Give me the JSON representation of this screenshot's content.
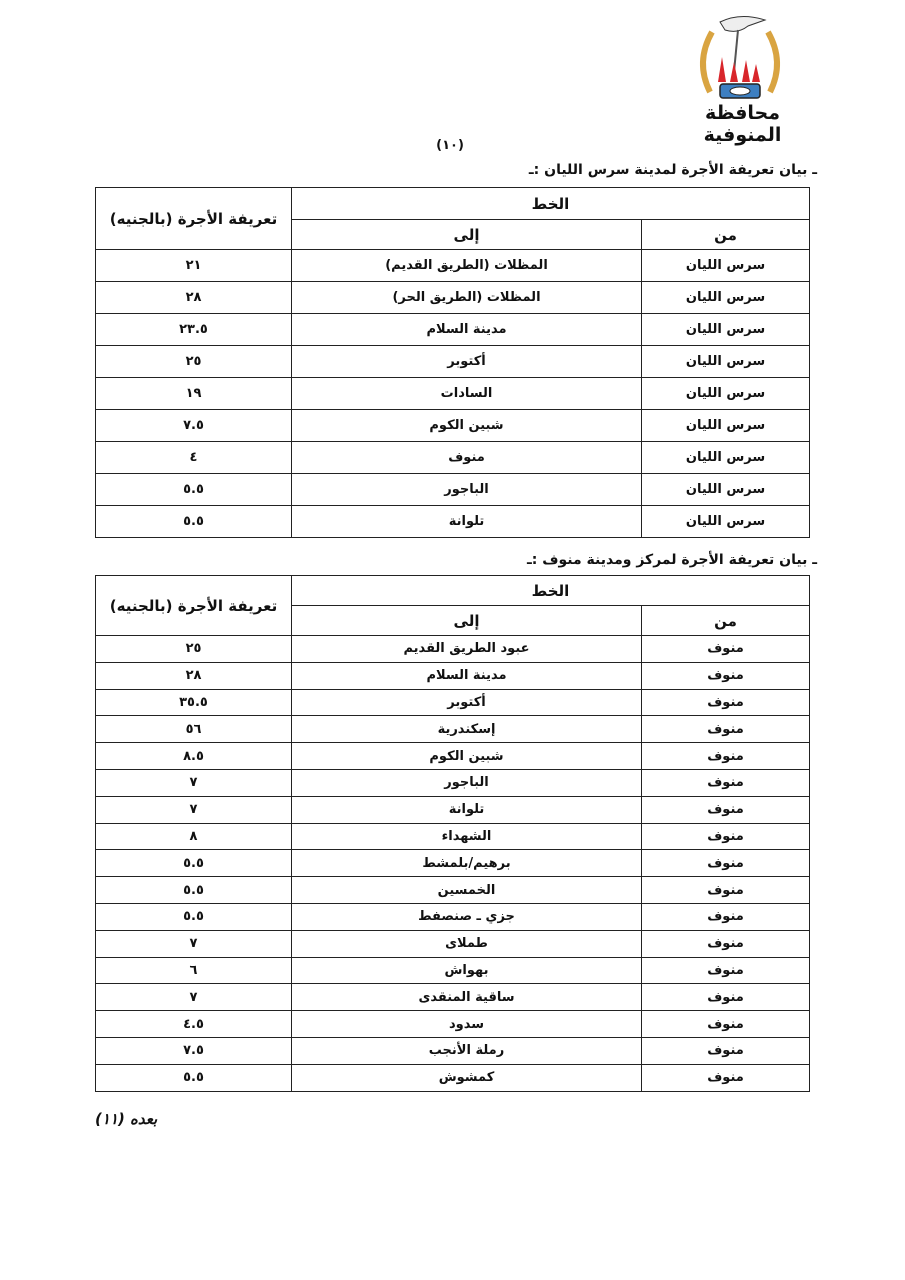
{
  "header": {
    "governorate": "محافظة المنوفية",
    "page_number": "(١٠)"
  },
  "colors": {
    "logo_flame": "#d8262b",
    "logo_wheat": "#d9a441",
    "logo_gear": "#3d7fc1"
  },
  "tables": [
    {
      "title": "ـ بيان تعريفة الأجرة لمدينة سرس الليان :ـ",
      "headers": {
        "line": "الخط",
        "from": "من",
        "to": "إلى",
        "fare": "تعريفة الأجرة (بالجنيه)"
      },
      "rows": [
        {
          "from": "سرس الليان",
          "to": "المظلات (الطريق القديم)",
          "fare": "٢١"
        },
        {
          "from": "سرس الليان",
          "to": "المظلات (الطريق الحر)",
          "fare": "٢٨"
        },
        {
          "from": "سرس الليان",
          "to": "مدينة السلام",
          "fare": "٢٣.٥"
        },
        {
          "from": "سرس الليان",
          "to": "أكتوبر",
          "fare": "٢٥"
        },
        {
          "from": "سرس الليان",
          "to": "السادات",
          "fare": "١٩"
        },
        {
          "from": "سرس الليان",
          "to": "شبين الكوم",
          "fare": "٧.٥"
        },
        {
          "from": "سرس الليان",
          "to": "منوف",
          "fare": "٤"
        },
        {
          "from": "سرس الليان",
          "to": "الباجور",
          "fare": "٥.٥"
        },
        {
          "from": "سرس الليان",
          "to": "تلوانة",
          "fare": "٥.٥"
        }
      ]
    },
    {
      "title": "ـ بيان تعريفة الأجرة لمركز ومدينة منوف :ـ",
      "headers": {
        "line": "الخط",
        "from": "من",
        "to": "إلى",
        "fare": "تعريفة الأجرة (بالجنيه)"
      },
      "rows": [
        {
          "from": "منوف",
          "to": "عبود الطريق القديم",
          "fare": "٢٥"
        },
        {
          "from": "منوف",
          "to": "مدينة السلام",
          "fare": "٢٨"
        },
        {
          "from": "منوف",
          "to": "أكتوبر",
          "fare": "٣٥.٥"
        },
        {
          "from": "منوف",
          "to": "إسكندرية",
          "fare": "٥٦"
        },
        {
          "from": "منوف",
          "to": "شبين الكوم",
          "fare": "٨.٥"
        },
        {
          "from": "منوف",
          "to": "الباجور",
          "fare": "٧"
        },
        {
          "from": "منوف",
          "to": "تلوانة",
          "fare": "٧"
        },
        {
          "from": "منوف",
          "to": "الشهداء",
          "fare": "٨"
        },
        {
          "from": "منوف",
          "to": "برهيم/بلمشط",
          "fare": "٥.٥"
        },
        {
          "from": "منوف",
          "to": "الخمسين",
          "fare": "٥.٥"
        },
        {
          "from": "منوف",
          "to": "جزي ـ صنصفط",
          "fare": "٥.٥"
        },
        {
          "from": "منوف",
          "to": "طملاى",
          "fare": "٧"
        },
        {
          "from": "منوف",
          "to": "بهواش",
          "fare": "٦"
        },
        {
          "from": "منوف",
          "to": "ساقية المنقدى",
          "fare": "٧"
        },
        {
          "from": "منوف",
          "to": "سدود",
          "fare": "٤.٥"
        },
        {
          "from": "منوف",
          "to": "رملة الأنجب",
          "fare": "٧.٥"
        },
        {
          "from": "منوف",
          "to": "كمشوش",
          "fare": "٥.٥"
        }
      ]
    }
  ],
  "footer": {
    "continued": "بعده (١١)"
  }
}
